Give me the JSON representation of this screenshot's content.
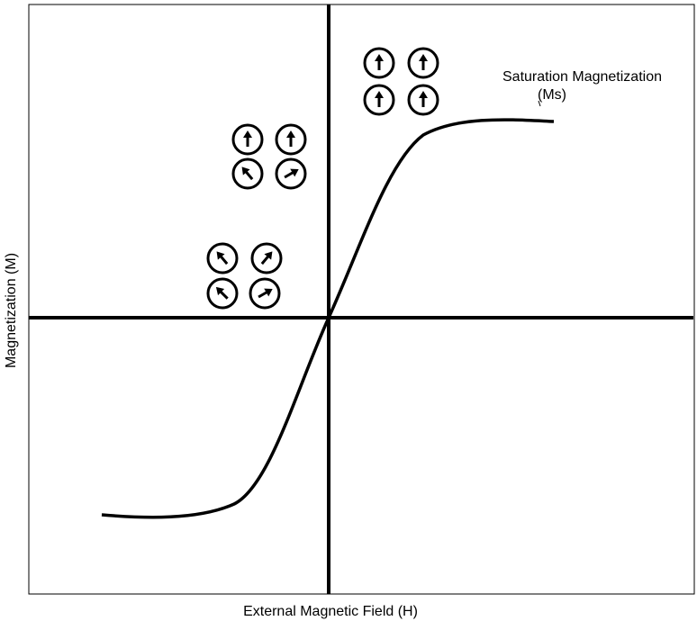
{
  "annotation": {
    "line1": "Saturation Magnetization",
    "line2": "(Ms)"
  },
  "x_axis_label": "External Magnetic Field (H)",
  "y_axis_label": "Magnetization (M)"
}
